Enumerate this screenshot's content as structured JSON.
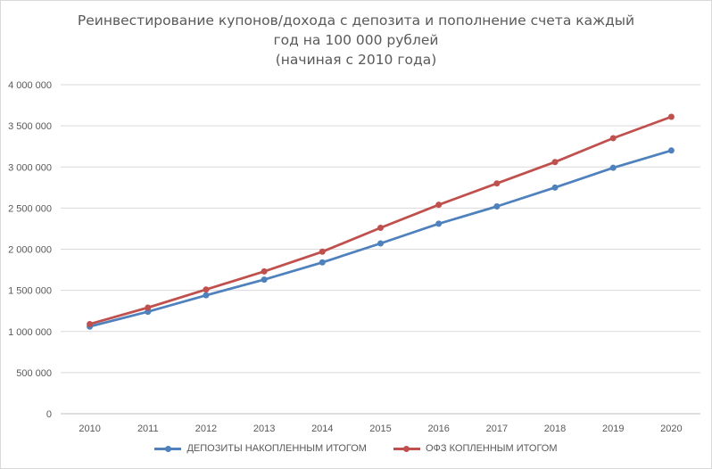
{
  "chart_data": {
    "type": "line",
    "title_lines": [
      "Реинвестирование купонов/дохода с депозита и пополнение счета каждый",
      "год на 100 000 рублей",
      "(начиная с 2010 года)"
    ],
    "categories": [
      "2010",
      "2011",
      "2012",
      "2013",
      "2014",
      "2015",
      "2016",
      "2017",
      "2018",
      "2019",
      "2020"
    ],
    "ylim": [
      0,
      4000000
    ],
    "y_ticks": [
      0,
      500000,
      1000000,
      1500000,
      2000000,
      2500000,
      3000000,
      3500000,
      4000000
    ],
    "y_tick_labels": [
      "0",
      "500 000",
      "1 000 000",
      "1 500 000",
      "2 000 000",
      "2 500 000",
      "3 000 000",
      "3 500 000",
      "4 000 000"
    ],
    "grid": true,
    "legend_position": "bottom",
    "series": [
      {
        "name": "ДЕПОЗИТЫ НАКОПЛЕННЫМ ИТОГОМ",
        "color": "#4f81bd",
        "values": [
          1060000,
          1240000,
          1440000,
          1630000,
          1840000,
          2070000,
          2310000,
          2520000,
          2750000,
          2990000,
          3200000
        ]
      },
      {
        "name": "ОФЗ КОПЛЕННЫМ ИТОГОМ",
        "color": "#c0504d",
        "values": [
          1090000,
          1290000,
          1510000,
          1730000,
          1970000,
          2260000,
          2540000,
          2800000,
          3060000,
          3350000,
          3610000
        ]
      }
    ]
  }
}
